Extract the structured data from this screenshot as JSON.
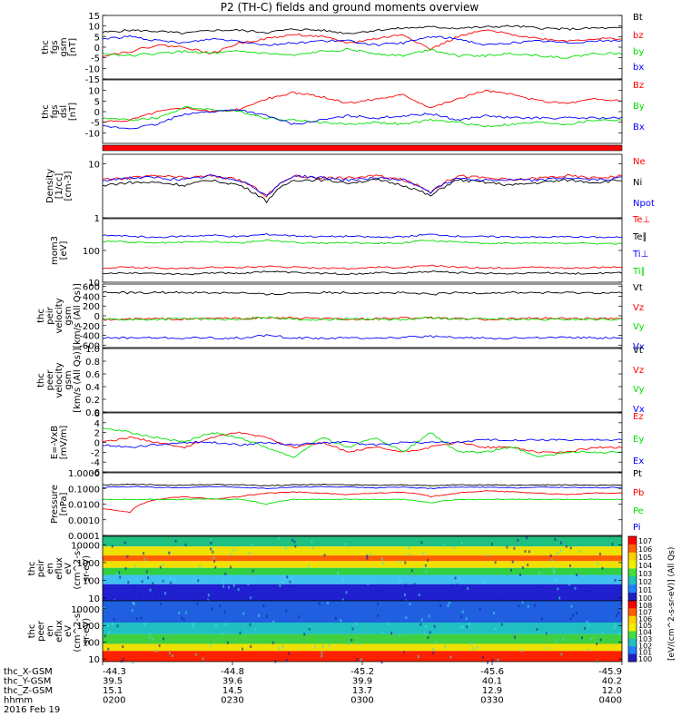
{
  "title": "P2 (TH-C) fields and ground moments overview",
  "colors": {
    "black": "#000000",
    "red": "#ff0000",
    "green": "#00e000",
    "blue": "#0000ff"
  },
  "chart_data": [
    {
      "id": "fgs",
      "type": "line",
      "ylabel": [
        "thc",
        "fgs",
        "gsm",
        "[nT]"
      ],
      "ylim": [
        -15,
        15
      ],
      "yticks": [
        "15",
        "10",
        "5",
        "0",
        "-5",
        "-10",
        "-15"
      ],
      "ytick_vals": [
        15,
        10,
        5,
        0,
        -5,
        -10,
        -15
      ],
      "series": [
        {
          "name": "Bt",
          "color": "black",
          "values": [
            7,
            8,
            7.5,
            6.5,
            8,
            8,
            7,
            8.5,
            8,
            6.5,
            8,
            9,
            9.5,
            9,
            9.5,
            10,
            9,
            8.5,
            9,
            9
          ]
        },
        {
          "name": "bz",
          "color": "red",
          "values": [
            -4,
            -2,
            1,
            0,
            -3,
            2,
            4,
            6,
            5,
            2,
            4,
            6,
            -1,
            5,
            8,
            6,
            4,
            3,
            4,
            4
          ]
        },
        {
          "name": "by",
          "color": "green",
          "values": [
            -3,
            -4,
            -3,
            -2,
            -3,
            -2,
            -3,
            -4,
            -2,
            -1,
            -3,
            -4,
            -1,
            -4,
            -4,
            -3,
            -4,
            -5,
            -3,
            -3
          ]
        },
        {
          "name": "bx",
          "color": "blue",
          "values": [
            4,
            5,
            3,
            2,
            4,
            3,
            1,
            2,
            3,
            3,
            1,
            2,
            5,
            4,
            1,
            2,
            3,
            2,
            3,
            3
          ]
        }
      ]
    },
    {
      "id": "fgs_dsl",
      "type": "line",
      "ylabel": [
        "thc",
        "fgs",
        "dsl",
        "[nT]"
      ],
      "ylim": [
        -15,
        15
      ],
      "yticks": [
        "10",
        "5",
        "0",
        "-5",
        "-10"
      ],
      "ytick_vals": [
        10,
        5,
        0,
        -5,
        -10
      ],
      "series": [
        {
          "name": "Bz",
          "color": "red",
          "values": [
            -5,
            -4,
            0,
            2,
            0,
            1,
            6,
            9,
            7,
            4,
            6,
            8,
            2,
            6,
            10,
            8,
            5,
            4,
            6,
            5
          ]
        },
        {
          "name": "By",
          "color": "green",
          "values": [
            -3,
            -4,
            -3,
            2,
            1,
            0,
            -3,
            -4,
            -5,
            -6,
            -5,
            -6,
            -4,
            -5,
            -7,
            -6,
            -5,
            -6,
            -4,
            -4
          ]
        },
        {
          "name": "Bx",
          "color": "blue",
          "values": [
            -7,
            -8,
            -6,
            -1,
            0,
            1,
            -2,
            -6,
            -4,
            -2,
            -3,
            -2,
            -1,
            -4,
            -2,
            -3,
            -3,
            -3,
            -3,
            -3
          ]
        }
      ]
    },
    {
      "id": "density",
      "type": "line",
      "ylabel": [
        "Density",
        "[1/cc]",
        "[cm-3]"
      ],
      "log": true,
      "ylim": [
        1,
        15
      ],
      "yticks": [
        "10",
        "1"
      ],
      "ytick_vals": [
        10,
        1
      ],
      "series": [
        {
          "name": "Ne",
          "color": "red",
          "values": [
            5,
            5.5,
            6,
            5.5,
            6,
            5,
            2.5,
            6,
            5.5,
            5.5,
            6,
            5,
            3,
            6,
            5.5,
            5,
            5.5,
            6,
            5.5,
            6
          ]
        },
        {
          "name": "Ni",
          "color": "black",
          "values": [
            4,
            4.5,
            4.5,
            4,
            5,
            4,
            2,
            5,
            5,
            4.5,
            5,
            4,
            2.5,
            5,
            4.5,
            4,
            4.5,
            5,
            4.5,
            5
          ]
        },
        {
          "name": "Npot",
          "color": "blue",
          "values": [
            5,
            5.5,
            5.5,
            5,
            6,
            5,
            2.5,
            6,
            5.5,
            5,
            5.5,
            5,
            3,
            5.5,
            5,
            5,
            5,
            5.5,
            5,
            5.5
          ]
        }
      ]
    },
    {
      "id": "temp",
      "type": "line",
      "ylabel": [
        "mom3",
        "[eV]"
      ],
      "log": true,
      "ylim": [
        10,
        1000
      ],
      "yticks": [
        "100",
        "10"
      ],
      "ytick_vals": [
        100,
        10
      ],
      "series": [
        {
          "name": "Te⊥",
          "color": "red",
          "values": [
            28,
            30,
            28,
            27,
            30,
            29,
            32,
            30,
            28,
            27,
            30,
            29,
            33,
            30,
            28,
            29,
            30,
            28,
            29,
            30
          ]
        },
        {
          "name": "Te∥",
          "color": "black",
          "values": [
            18,
            20,
            19,
            18,
            20,
            19,
            22,
            20,
            19,
            18,
            20,
            19,
            22,
            20,
            19,
            19,
            20,
            19,
            19,
            20
          ]
        },
        {
          "name": "Ti⊥",
          "color": "blue",
          "values": [
            300,
            280,
            260,
            280,
            300,
            270,
            320,
            290,
            270,
            280,
            260,
            270,
            320,
            280,
            270,
            270,
            260,
            270,
            260,
            260
          ]
        },
        {
          "name": "Ti∥",
          "color": "green",
          "values": [
            200,
            180,
            170,
            180,
            190,
            170,
            210,
            180,
            170,
            175,
            170,
            175,
            210,
            180,
            170,
            170,
            170,
            170,
            165,
            165
          ]
        }
      ]
    },
    {
      "id": "peir_velocity",
      "type": "line",
      "ylabel": [
        "thc",
        "peir",
        "velocity",
        "gsm",
        "[km/s (All Qs)]"
      ],
      "ylim": [
        -650,
        650
      ],
      "yticks": [
        "600",
        "400",
        "200",
        "0",
        "-200",
        "-400",
        "-600"
      ],
      "ytick_vals": [
        600,
        400,
        200,
        0,
        -200,
        -400,
        -600
      ],
      "series": [
        {
          "name": "Vt",
          "color": "black",
          "values": [
            480,
            470,
            475,
            480,
            470,
            475,
            430,
            470,
            480,
            475,
            470,
            465,
            440,
            470,
            470,
            475,
            470,
            470,
            470,
            470
          ]
        },
        {
          "name": "Vz",
          "color": "red",
          "values": [
            -80,
            -70,
            -60,
            -70,
            -50,
            -60,
            -40,
            -50,
            -60,
            -70,
            -60,
            -50,
            -40,
            -60,
            -70,
            -60,
            -50,
            -50,
            -60,
            -60
          ]
        },
        {
          "name": "Vy",
          "color": "green",
          "values": [
            -60,
            -80,
            -70,
            -60,
            -70,
            -80,
            -30,
            -70,
            -80,
            -60,
            -70,
            -80,
            -40,
            -70,
            -60,
            -70,
            -80,
            -70,
            -70,
            -70
          ]
        },
        {
          "name": "Vx",
          "color": "blue",
          "values": [
            -460,
            -450,
            -455,
            -460,
            -450,
            -455,
            -400,
            -450,
            -460,
            -455,
            -450,
            -445,
            -420,
            -450,
            -450,
            -455,
            -450,
            -450,
            -450,
            -450
          ]
        }
      ]
    },
    {
      "id": "peer_velocity",
      "type": "line",
      "ylabel": [
        "thc",
        "peer",
        "velocity",
        "gsm",
        "[km/s (All Qs)]"
      ],
      "ylim": [
        0,
        1
      ],
      "yticks": [
        "1.0",
        "0.8",
        "0.6",
        "0.4",
        "0.2",
        "0.0"
      ],
      "ytick_vals": [
        1,
        0.8,
        0.6,
        0.4,
        0.2,
        0
      ],
      "series": [
        {
          "name": "Vt",
          "color": "black",
          "values": []
        },
        {
          "name": "Vz",
          "color": "red",
          "values": []
        },
        {
          "name": "Vy",
          "color": "green",
          "values": []
        },
        {
          "name": "Vx",
          "color": "blue",
          "values": []
        }
      ]
    },
    {
      "id": "exb",
      "type": "line",
      "ylabel": [
        "E=-VxB",
        "[mV/m]"
      ],
      "ylim": [
        -6,
        6
      ],
      "yticks": [
        "6",
        "4",
        "2",
        "0",
        "-2",
        "-4",
        "-6"
      ],
      "ytick_vals": [
        6,
        4,
        2,
        0,
        -2,
        -4,
        -6
      ],
      "series": [
        {
          "name": "Ez",
          "color": "red",
          "values": [
            0,
            1,
            0,
            -1,
            1,
            2,
            1,
            -1,
            0,
            -2,
            -1,
            -2,
            -1,
            0,
            -1,
            -1,
            -2,
            -2,
            -1,
            -1
          ]
        },
        {
          "name": "Ey",
          "color": "green",
          "values": [
            3,
            2,
            1,
            0,
            2,
            1,
            -1,
            -3,
            1,
            -1,
            1,
            -2,
            2,
            -2,
            -2,
            -1,
            -3,
            -2,
            -2,
            -2
          ]
        },
        {
          "name": "Ex",
          "color": "blue",
          "values": [
            -0.5,
            -1,
            -0.5,
            0,
            0,
            -0.5,
            0,
            -0.5,
            0,
            0,
            -0.5,
            0,
            0,
            0,
            0.5,
            0.5,
            0.5,
            0.5,
            0.5,
            0.5
          ]
        }
      ]
    },
    {
      "id": "pressure",
      "type": "line",
      "ylabel": [
        "Pressure",
        "[nPa]"
      ],
      "log": true,
      "ylim": [
        0.0001,
        1
      ],
      "yticks": [
        "1.0000",
        "0.1000",
        "0.0100",
        "0.0010",
        "0.0001"
      ],
      "ytick_vals": [
        1,
        0.1,
        0.01,
        0.001,
        0.0001
      ],
      "series": [
        {
          "name": "Pt",
          "color": "black",
          "values": [
            0.17,
            0.18,
            0.17,
            0.16,
            0.18,
            0.17,
            0.15,
            0.17,
            0.18,
            0.17,
            0.16,
            0.17,
            0.15,
            0.17,
            0.17,
            0.16,
            0.17,
            0.17,
            0.16,
            0.17
          ]
        },
        {
          "name": "Pb",
          "color": "red",
          "values": [
            0.005,
            0.003,
            0.02,
            0.03,
            0.02,
            0.03,
            0.05,
            0.06,
            0.05,
            0.04,
            0.05,
            0.06,
            0.03,
            0.05,
            0.07,
            0.06,
            0.05,
            0.04,
            0.05,
            0.05
          ]
        },
        {
          "name": "Pe",
          "color": "green",
          "values": [
            0.02,
            0.02,
            0.02,
            0.02,
            0.022,
            0.02,
            0.01,
            0.02,
            0.02,
            0.02,
            0.02,
            0.02,
            0.012,
            0.02,
            0.02,
            0.02,
            0.02,
            0.02,
            0.02,
            0.02
          ]
        },
        {
          "name": "Pi",
          "color": "blue",
          "values": [
            0.12,
            0.13,
            0.12,
            0.11,
            0.13,
            0.12,
            0.1,
            0.12,
            0.13,
            0.12,
            0.11,
            0.12,
            0.1,
            0.12,
            0.12,
            0.11,
            0.12,
            0.12,
            0.11,
            0.12
          ]
        }
      ]
    },
    {
      "id": "peir_spectrogram",
      "type": "heatmap",
      "ylabel": [
        "thc",
        "peir",
        "en",
        "eflux",
        "eV",
        "(cm^2-s-",
        "sr-eV)"
      ],
      "log": true,
      "ylim": [
        7,
        30000
      ],
      "yticks": [
        "10000",
        "1000",
        "100",
        "10"
      ],
      "ytick_vals": [
        10000,
        1000,
        100,
        10
      ],
      "colorbar": {
        "label": "[eV/(cm^2-s-sr-eV)] (All Qs)",
        "ticks": [
          "10^7",
          "10^6",
          "10^5",
          "10^4",
          "10^3",
          "10^2",
          "10^1",
          "10^0"
        ]
      }
    },
    {
      "id": "peer_spectrogram",
      "type": "heatmap",
      "ylabel": [
        "thc",
        "peer",
        "en",
        "eflux",
        "eV",
        "(cm^2-s-",
        "sr-eV)"
      ],
      "log": true,
      "ylim": [
        7,
        30000
      ],
      "yticks": [
        "10000",
        "1000",
        "100",
        "10"
      ],
      "ytick_vals": [
        10000,
        1000,
        100,
        10
      ],
      "colorbar": {
        "label": "[eV/(cm^2-s-sr-eV)] (All Qs)",
        "ticks": [
          "10^8",
          "10^7",
          "10^6",
          "10^5",
          "10^4",
          "10^3",
          "10^2",
          "10^1",
          "10^0"
        ]
      }
    }
  ],
  "xaxis": {
    "rows": [
      {
        "label": "thc_X-GSM",
        "values": [
          "-44.3",
          "-44.8",
          "-45.2",
          "-45.6",
          "-45.9"
        ]
      },
      {
        "label": "thc_Y-GSM",
        "values": [
          "39.5",
          "39.6",
          "39.9",
          "40.1",
          "40.2"
        ]
      },
      {
        "label": "thc_Z-GSM",
        "values": [
          "15.1",
          "14.5",
          "13.7",
          "12.9",
          "12.0"
        ]
      },
      {
        "label": "hhmm",
        "values": [
          "0200",
          "0230",
          "0300",
          "0330",
          "0400"
        ]
      }
    ],
    "date": "2016 Feb 19"
  }
}
